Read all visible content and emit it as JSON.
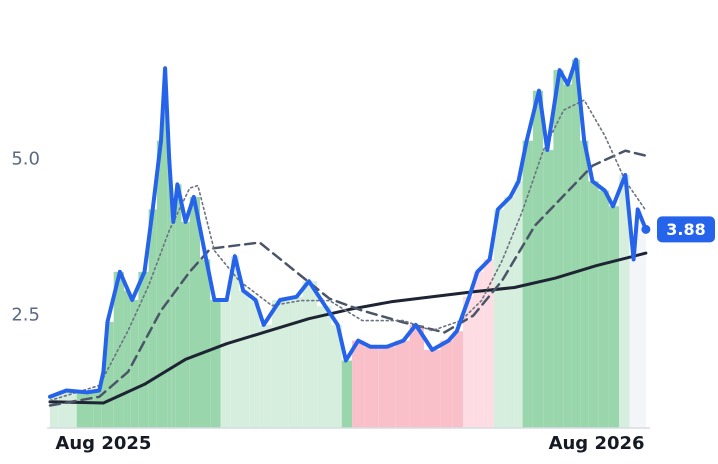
{
  "chart_data": {
    "type": "line",
    "x": [
      -1.3,
      -0.9,
      -0.4,
      -0.1,
      0,
      0.1,
      0.4,
      0.6,
      0.7,
      1.0,
      1.2,
      1.4,
      1.5,
      1.6,
      1.7,
      1.8,
      2.0,
      2.2,
      2.5,
      2.7,
      3.0,
      3.2,
      3.4,
      3.7,
      3.9,
      4.3,
      4.7,
      5.0,
      5.4,
      5.7,
      5.9,
      6.2,
      6.5,
      6.9,
      7.3,
      7.6,
      8.0,
      8.4,
      8.6,
      8.9,
      9.1,
      9.4,
      9.6,
      9.9,
      10.1,
      10.3,
      10.6,
      10.8,
      11.1,
      11.3,
      11.5,
      11.7,
      11.9,
      12.2,
      12.4,
      12.7,
      12.9,
      13.0,
      13.2
    ],
    "series": [
      {
        "color": "#2563eb",
        "style": "solid",
        "width": 4,
        "values": [
          1.2,
          1.3,
          1.27,
          1.3,
          1.6,
          2.4,
          3.2,
          2.9,
          2.75,
          3.2,
          4.2,
          5.3,
          6.46,
          5.0,
          4.0,
          4.6,
          4.0,
          4.4,
          3.4,
          2.75,
          2.75,
          3.45,
          2.9,
          2.75,
          2.35,
          2.75,
          2.8,
          3.05,
          2.65,
          2.35,
          1.78,
          2.1,
          2.0,
          2.0,
          2.1,
          2.35,
          1.95,
          2.1,
          2.25,
          2.8,
          3.2,
          3.4,
          4.2,
          4.4,
          4.65,
          5.3,
          6.1,
          5.15,
          6.43,
          6.2,
          6.6,
          5.3,
          4.65,
          4.5,
          4.25,
          4.75,
          3.4,
          4.2,
          3.88
        ],
        "fill_colors": [
          "#d5eedd",
          "#d5eedd",
          "#9ad6ac",
          "#9ad6ac",
          "#9ad6ac",
          "#9ad6ac",
          "#9ad6ac",
          "#9ad6ac",
          "#9ad6ac",
          "#9ad6ac",
          "#9ad6ac",
          "#9ad6ac",
          "#9ad6ac",
          "#9ad6ac",
          "#9ad6ac",
          "#9ad6ac",
          "#9ad6ac",
          "#9ad6ac",
          "#9ad6ac",
          "#9ad6ac",
          "#d5eedd",
          "#d5eedd",
          "#d5eedd",
          "#d5eedd",
          "#d5eedd",
          "#d5eedd",
          "#d5eedd",
          "#d5eedd",
          "#d5eedd",
          "#d5eedd",
          "#9ad6ac",
          "#f9c0ca",
          "#f9c0ca",
          "#f9c0ca",
          "#f9c0ca",
          "#f9c0ca",
          "#f9c0ca",
          "#f9c0ca",
          "#f9c0ca",
          "#fddde3",
          "#fddde3",
          "#fddde3",
          "#d5eedd",
          "#d5eedd",
          "#d5eedd",
          "#9ad6ac",
          "#9ad6ac",
          "#9ad6ac",
          "#9ad6ac",
          "#9ad6ac",
          "#9ad6ac",
          "#9ad6ac",
          "#9ad6ac",
          "#9ad6ac",
          "#9ad6ac",
          "#d5eedd",
          "#f3f5f9",
          "#f3f5f9",
          "#f3f5f9"
        ]
      },
      {
        "color": "#6b7280",
        "style": "dotted",
        "width": 1.6,
        "x": [
          -1.3,
          -0.1,
          0.6,
          1.1,
          1.6,
          2.1,
          2.3,
          2.7,
          3.3,
          4.1,
          4.8,
          5.5,
          6.3,
          7.3,
          8.0,
          8.7,
          9.2,
          9.7,
          10.2,
          10.7,
          11.2,
          11.7,
          12.2,
          12.7,
          13.2
        ],
        "values": [
          1.14,
          1.38,
          2.26,
          2.98,
          3.86,
          4.54,
          4.58,
          3.54,
          3.06,
          2.66,
          2.74,
          2.74,
          2.42,
          2.42,
          2.26,
          2.42,
          2.74,
          3.38,
          4.18,
          5.14,
          5.79,
          5.95,
          5.38,
          4.66,
          4.18
        ]
      },
      {
        "color": "#4a5568",
        "style": "dashed",
        "width": 2.5,
        "x": [
          -1.3,
          -0.1,
          0.6,
          1.4,
          2.1,
          2.6,
          3.8,
          4.8,
          5.5,
          6.3,
          7.3,
          8.3,
          9.0,
          9.7,
          10.5,
          11.2,
          11.9,
          12.7,
          13.2
        ],
        "values": [
          1.06,
          1.2,
          1.6,
          2.58,
          3.2,
          3.57,
          3.67,
          3.14,
          2.77,
          2.58,
          2.39,
          2.23,
          2.5,
          3.06,
          3.94,
          4.42,
          4.9,
          5.14,
          5.06
        ]
      },
      {
        "color": "#1e2433",
        "style": "solid",
        "width": 3,
        "x": [
          -1.3,
          0,
          1,
          2,
          3,
          4,
          5,
          6,
          7,
          8,
          9,
          10,
          11,
          12,
          13.2
        ],
        "values": [
          1.12,
          1.1,
          1.4,
          1.8,
          2.05,
          2.25,
          2.45,
          2.6,
          2.72,
          2.8,
          2.88,
          2.95,
          3.1,
          3.3,
          3.5
        ]
      }
    ],
    "xlim": [
      -1.3,
      13.3
    ],
    "xticks": [
      {
        "value": 0,
        "label": "Aug 2025"
      },
      {
        "value": 12,
        "label": "Aug 2026"
      }
    ],
    "ylim": [
      0.7,
      7.2
    ],
    "yticks": [
      2.5,
      {
        "value": 5,
        "label": "5.0"
      }
    ]
  }
}
